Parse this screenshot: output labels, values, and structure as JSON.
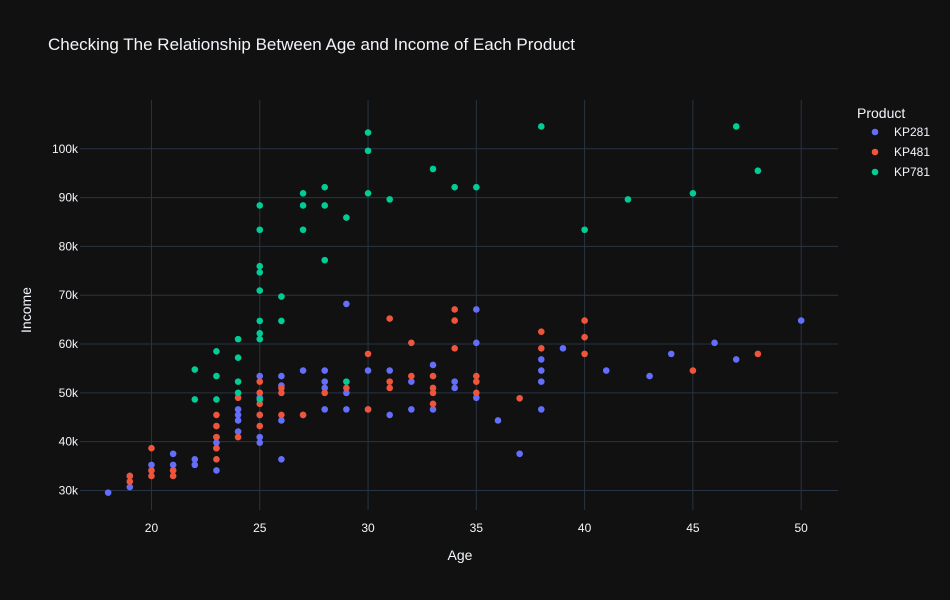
{
  "chart_data": {
    "type": "scatter",
    "title": "Checking The Relationship Between Age and Income of Each Product",
    "xlabel": "Age",
    "ylabel": "Income",
    "xlim": [
      16.7,
      51.7
    ],
    "ylim": [
      26000,
      110000
    ],
    "xticks": [
      20,
      25,
      30,
      35,
      40,
      45,
      50
    ],
    "xtick_labels": [
      "20",
      "25",
      "30",
      "35",
      "40",
      "45",
      "50"
    ],
    "yticks": [
      30000,
      40000,
      50000,
      60000,
      70000,
      80000,
      90000,
      100000
    ],
    "ytick_labels": [
      "30k",
      "40k",
      "50k",
      "60k",
      "70k",
      "80k",
      "90k",
      "100k"
    ],
    "grid": true,
    "legend": {
      "title": "Product",
      "position": "top-right"
    },
    "series": [
      {
        "name": "KP281",
        "color": "#636efa",
        "x": [
          18,
          19,
          19,
          20,
          20,
          21,
          21,
          21,
          22,
          22,
          23,
          23,
          23,
          23,
          24,
          24,
          24,
          24,
          25,
          25,
          25,
          25,
          25,
          25,
          26,
          26,
          26,
          26,
          27,
          27,
          28,
          28,
          28,
          28,
          29,
          29,
          29,
          30,
          30,
          31,
          31,
          32,
          32,
          33,
          33,
          34,
          34,
          35,
          35,
          35,
          36,
          37,
          38,
          38,
          38,
          38,
          39,
          41,
          43,
          44,
          46,
          47,
          50
        ],
        "y": [
          29562,
          30699,
          32973,
          34110,
          35247,
          34110,
          35247,
          37521,
          35247,
          36384,
          34110,
          38658,
          39795,
          40932,
          42069,
          44343,
          45480,
          46617,
          39795,
          40932,
          45480,
          49000,
          50000,
          53439,
          36384,
          44343,
          51500,
          53439,
          45480,
          54576,
          46617,
          51000,
          52302,
          54576,
          46617,
          50000,
          68220,
          46617,
          54576,
          45480,
          54576,
          46617,
          52302,
          46617,
          55713,
          51000,
          52302,
          49000,
          60261,
          67083,
          44343,
          37521,
          46617,
          52302,
          54576,
          56850,
          59124,
          54576,
          53439,
          57987,
          60261,
          56850,
          64809
        ]
      },
      {
        "name": "KP481",
        "color": "#ef553b",
        "x": [
          19,
          19,
          20,
          20,
          20,
          21,
          21,
          23,
          23,
          23,
          23,
          23,
          24,
          24,
          25,
          25,
          25,
          25,
          25,
          26,
          26,
          26,
          27,
          28,
          29,
          30,
          30,
          31,
          31,
          31,
          32,
          32,
          33,
          33,
          33,
          33,
          34,
          34,
          34,
          35,
          35,
          35,
          37,
          38,
          38,
          40,
          40,
          40,
          45,
          48
        ],
        "y": [
          31836,
          32973,
          32973,
          34110,
          38658,
          32973,
          34110,
          36384,
          38658,
          40932,
          43206,
          45480,
          40932,
          49000,
          43206,
          45480,
          47754,
          50000,
          52302,
          45480,
          50000,
          51000,
          45480,
          50000,
          51000,
          46617,
          57987,
          51000,
          52302,
          65220,
          53439,
          60261,
          47754,
          50000,
          51000,
          53439,
          59124,
          64809,
          67083,
          50000,
          52302,
          53439,
          48891,
          59124,
          62535,
          57987,
          61398,
          64809,
          54576,
          57987
        ]
      },
      {
        "name": "KP781",
        "color": "#00cc96",
        "x": [
          22,
          22,
          23,
          23,
          23,
          24,
          24,
          24,
          24,
          25,
          25,
          25,
          25,
          25,
          25,
          25,
          25,
          25,
          26,
          26,
          27,
          27,
          27,
          28,
          28,
          28,
          29,
          29,
          30,
          30,
          30,
          31,
          33,
          34,
          35,
          38,
          40,
          42,
          45,
          47,
          48
        ],
        "y": [
          48658,
          54781,
          48658,
          53439,
          58516,
          50000,
          52302,
          57204,
          61006,
          48658,
          61006,
          62200,
          64741,
          70966,
          74701,
          75946,
          83416,
          88402,
          64741,
          69721,
          83416,
          88396,
          90886,
          77191,
          88396,
          92131,
          85906,
          52302,
          90886,
          99601,
          103336,
          89641,
          95866,
          92131,
          92131,
          104581,
          83416,
          89641,
          90886,
          104581,
          95508
        ]
      }
    ]
  }
}
